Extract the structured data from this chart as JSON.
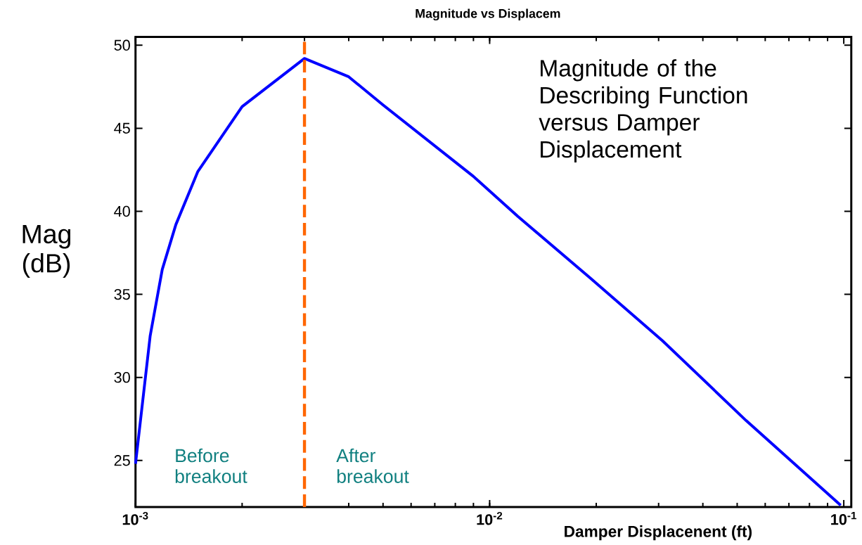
{
  "chart_data": {
    "type": "line",
    "title": "Magnitude vs Displacem",
    "xlabel": "Damper Displacenent (ft)",
    "ylabel": "Mag (dB)",
    "log": "x",
    "x": [
      0.001,
      0.0011,
      0.00119,
      0.0013,
      0.0015,
      0.002,
      0.003,
      0.004,
      0.005,
      0.009,
      0.012,
      0.0192,
      0.0308,
      0.053,
      0.098
    ],
    "series": [
      {
        "color": "#0000ff",
        "values": [
          24.8,
          32.5,
          36.5,
          39.2,
          42.4,
          46.3,
          49.2,
          48.1,
          46.4,
          42.1,
          39.7,
          36.0,
          32.2,
          27.4,
          22.3
        ]
      }
    ],
    "xlim": [
      0.001,
      0.105
    ],
    "ylim": [
      22.2,
      50.5
    ],
    "xticks": [
      {
        "value": 0.001,
        "label": "10$^{-3}$"
      },
      {
        "value": 0.01,
        "label": "10$^{-2}$"
      },
      {
        "value": 0.1,
        "label": "10$^{-1}$"
      }
    ],
    "yticks": [
      25,
      30,
      35,
      40,
      45,
      50
    ],
    "ref_lines": [
      {
        "axis": "x",
        "value": 0.003,
        "color": "#ff6600",
        "line_style": "dashed"
      }
    ],
    "annotations": [
      "Magnitude of the Describing Function versus Damper Displacement",
      "Before breakout",
      "After breakout"
    ],
    "grid": false,
    "marker": "none",
    "line_style": "solid"
  }
}
